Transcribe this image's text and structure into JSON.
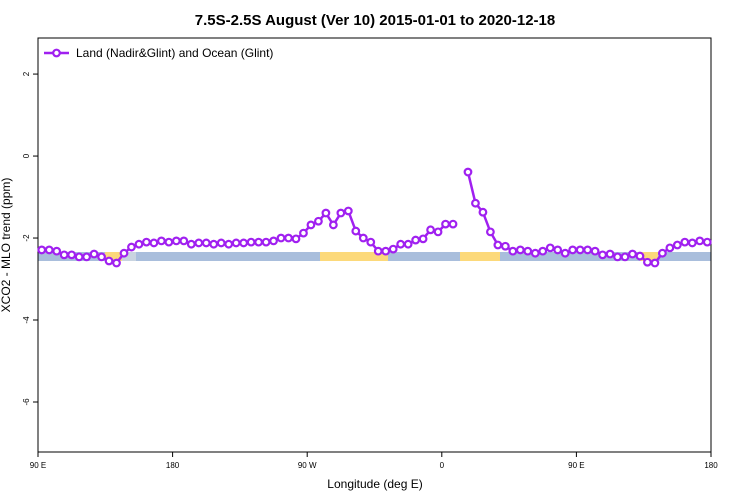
{
  "chart_data": {
    "type": "line",
    "title": "7.5S-2.5S August (Ver 10)   2015-01-01 to 2020-12-18",
    "x_label": "Longitude (deg E)",
    "y_label": "XCO2 - MLO trend (ppm)",
    "xlim": [
      90,
      540
    ],
    "ylim": [
      -7.22,
      2.88
    ],
    "xticks": [
      {
        "value": 90,
        "label": "90 E"
      },
      180,
      {
        "value": 270,
        "label": "90 W"
      },
      {
        "value": 360,
        "label": "0"
      },
      {
        "value": 450,
        "label": "90 E"
      },
      {
        "value": 540,
        "label": "180"
      }
    ],
    "yticks": [
      2,
      0,
      -2,
      -4,
      -6
    ],
    "legend_position": "top-left",
    "x": [
      92.5,
      97.5,
      102.5,
      107.5,
      112.5,
      117.5,
      122.5,
      127.5,
      132.5,
      137.5,
      142.5,
      147.5,
      152.5,
      157.5,
      162.5,
      167.5,
      172.5,
      177.5,
      182.5,
      187.5,
      192.5,
      197.5,
      202.5,
      207.5,
      212.5,
      217.5,
      222.5,
      227.5,
      232.5,
      237.5,
      242.5,
      247.5,
      252.5,
      257.5,
      262.5,
      267.5,
      272.5,
      277.5,
      282.5,
      287.5,
      292.5,
      297.5,
      302.5,
      307.5,
      312.5,
      317.5,
      322.5,
      327.5,
      332.5,
      337.5,
      342.5,
      347.5,
      352.5,
      357.5,
      362.5,
      367.5,
      372.5,
      377.5,
      382.5,
      387.5,
      392.5,
      397.5,
      402.5,
      407.5,
      412.5,
      417.5,
      422.5,
      427.5,
      432.5,
      437.5,
      442.5,
      447.5,
      452.5,
      457.5,
      462.5,
      467.5,
      472.5,
      477.5,
      482.5,
      487.5,
      492.5,
      497.5,
      502.5,
      507.5,
      512.5,
      517.5,
      522.5,
      527.5,
      532.5,
      537.5
    ],
    "series": [
      {
        "name": "Land (Nadir&Glint) and Ocean (Glint)",
        "color": "#a020f0",
        "values": [
          -2.29,
          -2.29,
          -2.32,
          -2.41,
          -2.41,
          -2.46,
          -2.46,
          -2.39,
          -2.46,
          -2.56,
          -2.61,
          -2.37,
          -2.22,
          -2.15,
          -2.1,
          -2.12,
          -2.07,
          -2.1,
          -2.07,
          -2.07,
          -2.15,
          -2.12,
          -2.12,
          -2.15,
          -2.12,
          -2.15,
          -2.12,
          -2.12,
          -2.1,
          -2.1,
          -2.1,
          -2.07,
          -2.0,
          -2.0,
          -2.02,
          -1.88,
          -1.68,
          -1.59,
          -1.39,
          -1.68,
          -1.39,
          -1.34,
          -1.83,
          -2.0,
          -2.1,
          -2.32,
          -2.32,
          -2.27,
          -2.15,
          -2.15,
          -2.05,
          -2.02,
          -1.8,
          -1.85,
          -1.66,
          -1.66,
          null,
          -0.39,
          -1.15,
          -1.37,
          -1.85,
          -2.17,
          -2.2,
          -2.32,
          -2.29,
          -2.32,
          -2.37,
          -2.32,
          -2.24,
          -2.29,
          -2.37,
          -2.29,
          -2.29,
          -2.29,
          -2.32,
          -2.41,
          -2.39,
          -2.46,
          -2.46,
          -2.39,
          -2.44,
          -2.59,
          -2.61,
          -2.37,
          -2.24,
          -2.17,
          -2.1,
          -2.12,
          -2.07,
          -2.1
        ]
      }
    ]
  }
}
